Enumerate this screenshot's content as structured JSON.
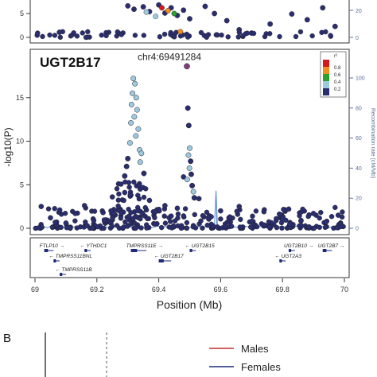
{
  "chart_data": [
    {
      "type": "scatter",
      "title": "",
      "ylabel": "",
      "y_ticks": [
        "0",
        "5"
      ],
      "right_ticks": [
        "20",
        "0"
      ],
      "xlim": [
        69.0,
        70.0
      ],
      "ylim": [
        0,
        7
      ],
      "note": "cropped top panel",
      "points": [
        {
          "x": 69.3,
          "y": 6.6
        },
        {
          "x": 69.32,
          "y": 5.9
        },
        {
          "x": 69.35,
          "y": 6.4
        },
        {
          "x": 69.37,
          "y": 5.4
        },
        {
          "x": 69.4,
          "y": 6.8
        },
        {
          "x": 69.42,
          "y": 5.1
        },
        {
          "x": 69.44,
          "y": 6.2
        },
        {
          "x": 69.46,
          "y": 4.6
        },
        {
          "x": 69.48,
          "y": 5.7
        },
        {
          "x": 69.5,
          "y": 3.9
        },
        {
          "x": 69.55,
          "y": 6.5
        },
        {
          "x": 69.58,
          "y": 5.0
        },
        {
          "x": 69.62,
          "y": 3.5
        },
        {
          "x": 69.66,
          "y": 1.6
        },
        {
          "x": 69.7,
          "y": 0.9
        },
        {
          "x": 69.76,
          "y": 2.8
        },
        {
          "x": 69.83,
          "y": 4.9
        },
        {
          "x": 69.88,
          "y": 3.7
        },
        {
          "x": 69.93,
          "y": 6.2
        },
        {
          "x": 69.97,
          "y": 2.3
        }
      ],
      "ld_points": [
        {
          "x": 69.41,
          "y": 6.2,
          "r2": 0.9
        },
        {
          "x": 69.43,
          "y": 5.6,
          "r2": 0.7
        },
        {
          "x": 69.45,
          "y": 5.0,
          "r2": 0.5
        },
        {
          "x": 69.39,
          "y": 4.4,
          "r2": 0.3
        },
        {
          "x": 69.47,
          "y": 1.2,
          "r2": 0.7
        },
        {
          "x": 69.36,
          "y": 5.3,
          "r2": 0.2
        }
      ]
    },
    {
      "type": "scatter",
      "title": "UGT2B17",
      "xlabel": "Position (Mb)",
      "ylabel": "-log10(P)",
      "right_label": "Recombination rate (cM/Mb)",
      "xlim": [
        69.0,
        70.0
      ],
      "ylim": [
        0,
        20
      ],
      "right_ylim": [
        0,
        100
      ],
      "x_ticks": [
        "69",
        "69.2",
        "69.4",
        "69.6",
        "69.8",
        "70"
      ],
      "y_ticks": [
        "0",
        "5",
        "10",
        "15"
      ],
      "right_ticks": [
        "0",
        "20",
        "40",
        "60",
        "80",
        "100"
      ],
      "lead_snp": {
        "label": "chr4:69491284",
        "x": 69.491,
        "y": 18.6
      },
      "legend": {
        "title": "r²",
        "labels": [
          "0.8",
          "0.6",
          "0.4",
          "0.2"
        ],
        "placement": "top-right"
      },
      "ld_colors": [
        "#d7191c",
        "#f28c1e",
        "#f2e43a",
        "#2ca02c",
        "#9ecae1",
        "#2b2e6e"
      ],
      "recombination_spike": {
        "x": 69.585,
        "rate": 25
      },
      "points_low": [
        {
          "x": 69.02,
          "y": 2.5
        },
        {
          "x": 69.05,
          "y": 1.2
        },
        {
          "x": 69.08,
          "y": 2.1
        },
        {
          "x": 69.1,
          "y": 0.6
        },
        {
          "x": 69.13,
          "y": 1.7
        },
        {
          "x": 69.16,
          "y": 2.6
        },
        {
          "x": 69.19,
          "y": 0.9
        },
        {
          "x": 69.22,
          "y": 1.8
        },
        {
          "x": 69.25,
          "y": 3.6
        },
        {
          "x": 69.27,
          "y": 5.1
        },
        {
          "x": 69.29,
          "y": 4.1
        },
        {
          "x": 69.31,
          "y": 3.8
        },
        {
          "x": 69.34,
          "y": 4.5
        },
        {
          "x": 69.37,
          "y": 3.2
        },
        {
          "x": 69.39,
          "y": 1.9
        },
        {
          "x": 69.42,
          "y": 2.6
        },
        {
          "x": 69.44,
          "y": 1.4
        },
        {
          "x": 69.46,
          "y": 2.3
        },
        {
          "x": 69.48,
          "y": 5.9
        },
        {
          "x": 69.53,
          "y": 3.4
        },
        {
          "x": 69.56,
          "y": 1.2
        },
        {
          "x": 69.6,
          "y": 2.0
        },
        {
          "x": 69.63,
          "y": 1.3
        },
        {
          "x": 69.66,
          "y": 2.5
        },
        {
          "x": 69.7,
          "y": 0.8
        },
        {
          "x": 69.74,
          "y": 1.9
        },
        {
          "x": 69.78,
          "y": 1.1
        },
        {
          "x": 69.82,
          "y": 2.2
        },
        {
          "x": 69.86,
          "y": 0.9
        },
        {
          "x": 69.9,
          "y": 1.7
        },
        {
          "x": 69.94,
          "y": 0.7
        },
        {
          "x": 69.98,
          "y": 1.5
        }
      ],
      "peak_points": [
        {
          "x": 69.318,
          "y": 17.2,
          "r2": 0.3
        },
        {
          "x": 69.323,
          "y": 16.6,
          "r2": 0.3
        },
        {
          "x": 69.315,
          "y": 15.5,
          "r2": 0.3
        },
        {
          "x": 69.327,
          "y": 15.0,
          "r2": 0.2
        },
        {
          "x": 69.312,
          "y": 14.2,
          "r2": 0.3
        },
        {
          "x": 69.33,
          "y": 13.6,
          "r2": 0.2
        },
        {
          "x": 69.321,
          "y": 12.8,
          "r2": 0.3
        },
        {
          "x": 69.31,
          "y": 12.1,
          "r2": 0.2
        },
        {
          "x": 69.334,
          "y": 11.4,
          "r2": 0.2
        },
        {
          "x": 69.326,
          "y": 10.6,
          "r2": 0.3
        },
        {
          "x": 69.307,
          "y": 9.8,
          "r2": 0.2
        },
        {
          "x": 69.338,
          "y": 9.0,
          "r2": 0.2
        },
        {
          "x": 69.3,
          "y": 8.0,
          "r2": 0.0
        },
        {
          "x": 69.344,
          "y": 8.6,
          "r2": 0.2
        },
        {
          "x": 69.296,
          "y": 7.1,
          "r2": 0.0
        },
        {
          "x": 69.352,
          "y": 6.3,
          "r2": 0.0
        },
        {
          "x": 69.29,
          "y": 6.0,
          "r2": 0.0
        },
        {
          "x": 69.34,
          "y": 7.6,
          "r2": 0.2
        },
        {
          "x": 69.494,
          "y": 13.8,
          "r2": 0.0
        },
        {
          "x": 69.497,
          "y": 11.8,
          "r2": 0.0
        },
        {
          "x": 69.5,
          "y": 9.2,
          "r2": 0.3
        },
        {
          "x": 69.496,
          "y": 8.4,
          "r2": 0.2
        },
        {
          "x": 69.503,
          "y": 7.7,
          "r2": 0.0
        },
        {
          "x": 69.499,
          "y": 6.9,
          "r2": 0.3
        },
        {
          "x": 69.505,
          "y": 6.2,
          "r2": 0.0
        },
        {
          "x": 69.492,
          "y": 5.6,
          "r2": 0.3
        },
        {
          "x": 69.508,
          "y": 4.9,
          "r2": 0.0
        },
        {
          "x": 69.512,
          "y": 4.2,
          "r2": 0.2
        },
        {
          "x": 69.515,
          "y": 3.5,
          "r2": 0.0
        }
      ],
      "genes": [
        {
          "name": "FTLP10",
          "start": 69.03,
          "end": 69.06,
          "row": 0,
          "dir": "+"
        },
        {
          "name": "YTHDC1",
          "start": 69.16,
          "end": 69.18,
          "row": 0,
          "dir": "-"
        },
        {
          "name": "TMPRSS11E",
          "start": 69.31,
          "end": 69.36,
          "row": 0,
          "dir": "+"
        },
        {
          "name": "UGT2B15",
          "start": 69.5,
          "end": 69.52,
          "row": 0,
          "dir": "-"
        },
        {
          "name": "UGT2B10",
          "start": 69.82,
          "end": 69.84,
          "row": 0,
          "dir": "+"
        },
        {
          "name": "UGT2B7",
          "start": 69.93,
          "end": 69.96,
          "row": 0,
          "dir": "+"
        },
        {
          "name": "TMPRSS11BNL",
          "start": 69.06,
          "end": 69.08,
          "row": 1,
          "dir": "-"
        },
        {
          "name": "UGT2B17",
          "start": 69.4,
          "end": 69.44,
          "row": 1,
          "dir": "-"
        },
        {
          "name": "UGT2A3",
          "start": 69.79,
          "end": 69.81,
          "row": 1,
          "dir": "-"
        },
        {
          "name": "TMPRSS11B",
          "start": 69.08,
          "end": 69.1,
          "row": 2,
          "dir": "-"
        }
      ]
    },
    {
      "type": "line",
      "panel_label": "B",
      "series": [
        {
          "name": "Males",
          "color": "#c0302f"
        },
        {
          "name": "Females",
          "color": "#1b2a7a"
        }
      ]
    }
  ]
}
